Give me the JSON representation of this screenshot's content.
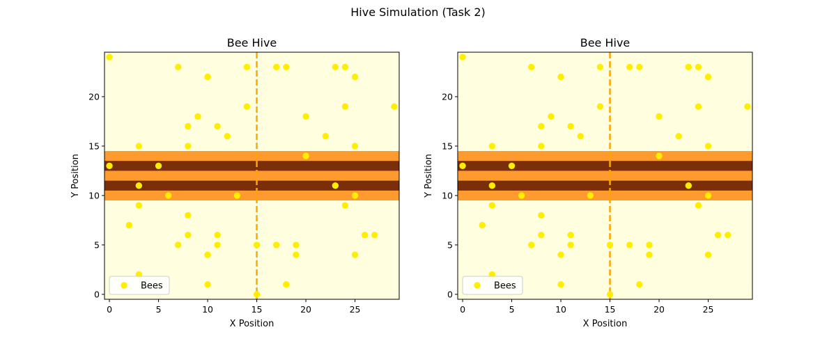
{
  "figure": {
    "suptitle": "Hive Simulation (Task 2)"
  },
  "colors": {
    "background": "#ffffe0",
    "outer_band": "#ff9a2e",
    "inner_band": "#7a2e0a",
    "bee": "#ffee00",
    "divider": "#ffa500"
  },
  "chart_data": [
    {
      "type": "scatter",
      "title": "Bee Hive",
      "xlabel": "X Position",
      "ylabel": "Y Position",
      "xlim": [
        -0.5,
        29.5
      ],
      "ylim": [
        -0.5,
        24.5
      ],
      "xticks": [
        0,
        5,
        10,
        15,
        20,
        25
      ],
      "yticks": [
        0,
        5,
        10,
        15,
        20
      ],
      "grid": false,
      "legend": {
        "placement": "lower-left",
        "entries": [
          "Bees"
        ]
      },
      "bands": [
        {
          "y_from": 9.5,
          "y_to": 14.5,
          "kind": "outer"
        },
        {
          "y_from": 10.5,
          "y_to": 11.5,
          "kind": "inner"
        },
        {
          "y_from": 12.5,
          "y_to": 13.5,
          "kind": "inner"
        }
      ],
      "vline": {
        "x": 15,
        "style": "dashed"
      },
      "series": [
        {
          "name": "Bees",
          "points": [
            [
              0,
              24
            ],
            [
              7,
              23
            ],
            [
              14,
              23
            ],
            [
              17,
              23
            ],
            [
              18,
              23
            ],
            [
              23,
              23
            ],
            [
              24,
              23
            ],
            [
              10,
              22
            ],
            [
              25,
              22
            ],
            [
              14,
              19
            ],
            [
              24,
              19
            ],
            [
              29,
              19
            ],
            [
              9,
              18
            ],
            [
              20,
              18
            ],
            [
              8,
              17
            ],
            [
              11,
              17
            ],
            [
              12,
              16
            ],
            [
              22,
              16
            ],
            [
              3,
              15
            ],
            [
              8,
              15
            ],
            [
              25,
              15
            ],
            [
              20,
              14
            ],
            [
              0,
              13
            ],
            [
              5,
              13
            ],
            [
              3,
              11
            ],
            [
              23,
              11
            ],
            [
              6,
              10
            ],
            [
              13,
              10
            ],
            [
              25,
              10
            ],
            [
              3,
              9
            ],
            [
              24,
              9
            ],
            [
              8,
              8
            ],
            [
              2,
              7
            ],
            [
              8,
              6
            ],
            [
              11,
              6
            ],
            [
              26,
              6
            ],
            [
              27,
              6
            ],
            [
              7,
              5
            ],
            [
              11,
              5
            ],
            [
              15,
              5
            ],
            [
              17,
              5
            ],
            [
              19,
              5
            ],
            [
              10,
              4
            ],
            [
              19,
              4
            ],
            [
              25,
              4
            ],
            [
              3,
              2
            ],
            [
              10,
              1
            ],
            [
              18,
              1
            ],
            [
              15,
              0
            ]
          ]
        }
      ]
    },
    {
      "type": "scatter",
      "title": "Bee Hive",
      "xlabel": "X Position",
      "ylabel": "Y Position",
      "xlim": [
        -0.5,
        29.5
      ],
      "ylim": [
        -0.5,
        24.5
      ],
      "xticks": [
        0,
        5,
        10,
        15,
        20,
        25
      ],
      "yticks": [
        0,
        5,
        10,
        15,
        20
      ],
      "grid": false,
      "legend": {
        "placement": "lower-left",
        "entries": [
          "Bees"
        ]
      },
      "bands": [
        {
          "y_from": 9.5,
          "y_to": 14.5,
          "kind": "outer"
        },
        {
          "y_from": 10.5,
          "y_to": 11.5,
          "kind": "inner"
        },
        {
          "y_from": 12.5,
          "y_to": 13.5,
          "kind": "inner"
        }
      ],
      "vline": {
        "x": 15,
        "style": "dashed"
      },
      "series": [
        {
          "name": "Bees",
          "points": [
            [
              0,
              24
            ],
            [
              7,
              23
            ],
            [
              14,
              23
            ],
            [
              17,
              23
            ],
            [
              18,
              23
            ],
            [
              23,
              23
            ],
            [
              24,
              23
            ],
            [
              10,
              22
            ],
            [
              25,
              22
            ],
            [
              14,
              19
            ],
            [
              24,
              19
            ],
            [
              29,
              19
            ],
            [
              9,
              18
            ],
            [
              20,
              18
            ],
            [
              8,
              17
            ],
            [
              11,
              17
            ],
            [
              12,
              16
            ],
            [
              22,
              16
            ],
            [
              3,
              15
            ],
            [
              8,
              15
            ],
            [
              25,
              15
            ],
            [
              20,
              14
            ],
            [
              0,
              13
            ],
            [
              5,
              13
            ],
            [
              3,
              11
            ],
            [
              23,
              11
            ],
            [
              6,
              10
            ],
            [
              13,
              10
            ],
            [
              25,
              10
            ],
            [
              3,
              9
            ],
            [
              24,
              9
            ],
            [
              8,
              8
            ],
            [
              2,
              7
            ],
            [
              8,
              6
            ],
            [
              11,
              6
            ],
            [
              26,
              6
            ],
            [
              27,
              6
            ],
            [
              7,
              5
            ],
            [
              11,
              5
            ],
            [
              15,
              5
            ],
            [
              17,
              5
            ],
            [
              19,
              5
            ],
            [
              10,
              4
            ],
            [
              19,
              4
            ],
            [
              25,
              4
            ],
            [
              3,
              2
            ],
            [
              10,
              1
            ],
            [
              18,
              1
            ],
            [
              15,
              0
            ]
          ]
        }
      ]
    }
  ]
}
